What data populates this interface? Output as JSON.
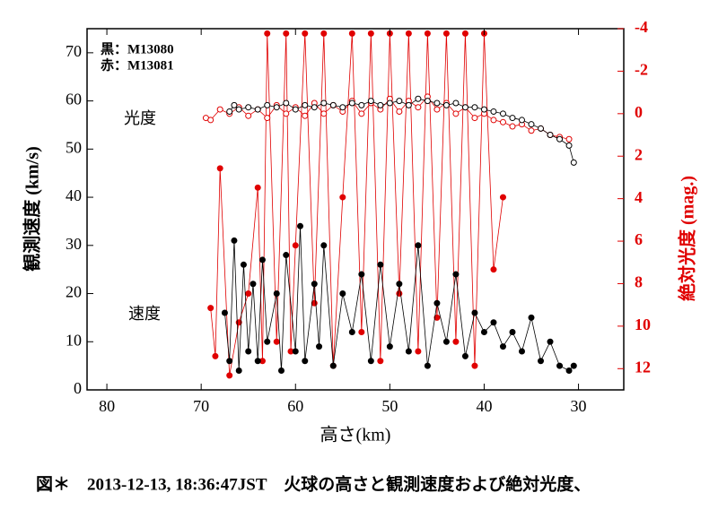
{
  "chart_data": {
    "type": "line",
    "xlabel": "高さ(km)",
    "ylabel": "観測速度 (km/s)",
    "y2label": "絶対光度 (mag.)",
    "annotations": [
      "黒：M13080",
      "赤：M13081",
      "光度",
      "速度"
    ],
    "caption": "図＊　2013-12-13, 18:36:47JST　火球の高さと観測速度および絶対光度、",
    "xlim": [
      82.1,
      25.2
    ],
    "xticks": [
      80,
      70,
      60,
      50,
      40,
      30
    ],
    "ylim": [
      0,
      75
    ],
    "yticks": [
      0,
      10,
      20,
      30,
      40,
      50,
      60,
      70
    ],
    "y2lim": [
      13,
      -4
    ],
    "y2ticks": [
      -4,
      -2,
      0,
      2,
      4,
      6,
      8,
      10,
      12
    ],
    "series": [
      {
        "color": "#e00000",
        "marker": "filled",
        "axis": "y",
        "x": [
          69,
          68.5,
          68,
          67,
          66,
          65,
          64,
          63.5,
          63,
          62,
          61,
          60.5,
          60,
          59,
          58,
          57,
          56,
          55,
          54,
          53,
          52,
          51,
          50,
          49,
          48,
          47,
          46,
          45,
          44,
          43,
          42,
          41,
          40,
          39,
          38
        ],
        "values": [
          17,
          7,
          46,
          3,
          14,
          20,
          42,
          6,
          74,
          10,
          74,
          8,
          30,
          74,
          18,
          74,
          5,
          40,
          74,
          12,
          74,
          6,
          74,
          20,
          74,
          8,
          74,
          15,
          74,
          10,
          74,
          5,
          74,
          25,
          40
        ]
      },
      {
        "color": "#000000",
        "marker": "filled",
        "axis": "y",
        "x": [
          67.5,
          67,
          66.5,
          66,
          65.5,
          65,
          64.5,
          64,
          63.5,
          63,
          62,
          61.5,
          61,
          60,
          59.5,
          59,
          58,
          57.5,
          57,
          56,
          55,
          54,
          53,
          52,
          51,
          50,
          49,
          48,
          47,
          46,
          45,
          44,
          43,
          42,
          41,
          40,
          39,
          38,
          37,
          36,
          35,
          34,
          33,
          32,
          31,
          30.5
        ],
        "values": [
          16,
          6,
          31,
          4,
          26,
          8,
          22,
          6,
          27,
          10,
          20,
          4,
          28,
          8,
          34,
          6,
          22,
          9,
          30,
          5,
          20,
          12,
          24,
          6,
          26,
          9,
          22,
          8,
          30,
          5,
          18,
          10,
          24,
          7,
          16,
          12,
          14,
          9,
          12,
          8,
          15,
          6,
          10,
          5,
          4,
          5
        ]
      },
      {
        "color": "#e00000",
        "marker": "open",
        "axis": "y2",
        "x": [
          69.5,
          69,
          68,
          67,
          66,
          65,
          64,
          63,
          62,
          61,
          60,
          59,
          58,
          57,
          56,
          55,
          54,
          53,
          52,
          51,
          50,
          49,
          48,
          47,
          46,
          45,
          44,
          43,
          42,
          41,
          40,
          39,
          38,
          37,
          36,
          35,
          34,
          33,
          32,
          31
        ],
        "values": [
          0.2,
          0.3,
          -0.2,
          0,
          -0.3,
          0.1,
          -0.2,
          0.2,
          -0.4,
          0,
          -0.3,
          0.1,
          -0.5,
          0,
          -0.4,
          -0.1,
          -0.6,
          0,
          -0.5,
          -0.2,
          -0.7,
          -0.1,
          -0.6,
          -0.3,
          -0.8,
          -0.2,
          -0.5,
          0,
          -0.3,
          0.2,
          0,
          0.3,
          0.4,
          0.6,
          0.5,
          0.8,
          0.7,
          1,
          1.1,
          1.2
        ]
      },
      {
        "color": "#000000",
        "marker": "open",
        "axis": "y2",
        "x": [
          67,
          66.5,
          66,
          65,
          64,
          63,
          62,
          61,
          60,
          59,
          58,
          57,
          56,
          55,
          54,
          53,
          52,
          51,
          50,
          49,
          48,
          47,
          46,
          45,
          44,
          43,
          42,
          41,
          40,
          39,
          38,
          37,
          36,
          35,
          34,
          33,
          32,
          31,
          30.5
        ],
        "values": [
          -0.1,
          -0.4,
          -0.2,
          -0.3,
          -0.2,
          -0.4,
          -0.3,
          -0.5,
          -0.2,
          -0.4,
          -0.3,
          -0.5,
          -0.4,
          -0.3,
          -0.5,
          -0.4,
          -0.6,
          -0.4,
          -0.5,
          -0.6,
          -0.4,
          -0.7,
          -0.6,
          -0.5,
          -0.4,
          -0.5,
          -0.3,
          -0.3,
          -0.2,
          -0.1,
          0,
          0.2,
          0.3,
          0.5,
          0.7,
          1,
          1.2,
          1.5,
          2.3
        ]
      }
    ]
  }
}
